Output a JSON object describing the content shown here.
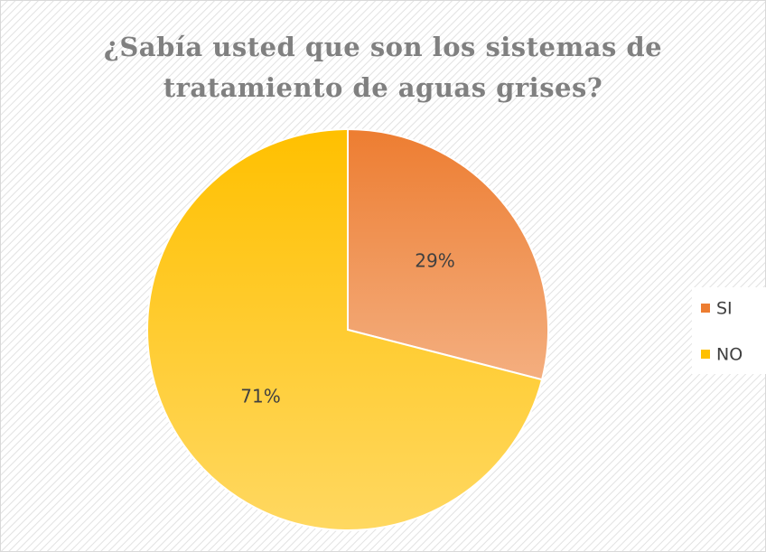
{
  "chart_data": {
    "type": "pie",
    "title": "¿Sabía usted que son los sistemas de tratamiento de aguas grises?",
    "categories": [
      "SI",
      "NO"
    ],
    "values": [
      29,
      71
    ],
    "value_labels": [
      "29%",
      "71%"
    ],
    "colors": [
      "#ED7D31",
      "#FFC000"
    ],
    "legend": "right"
  }
}
